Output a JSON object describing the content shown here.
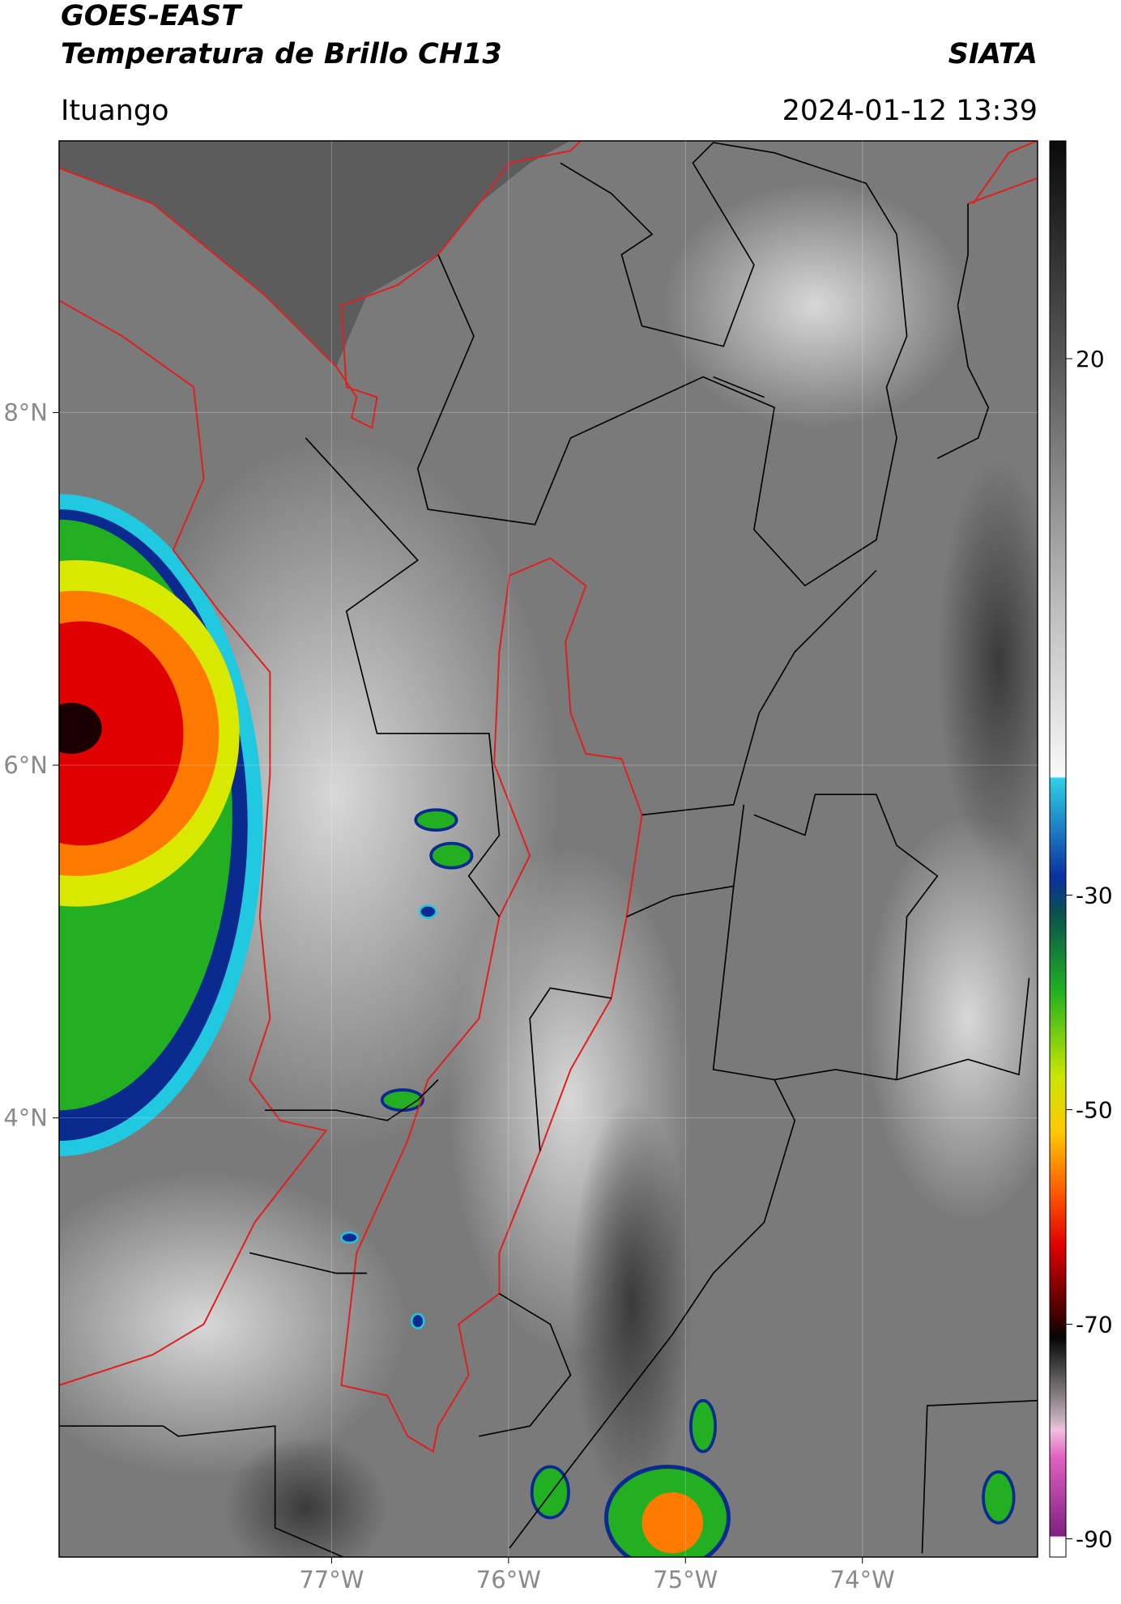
{
  "header": {
    "title_line1": "GOES-EAST",
    "title_line2": "Temperatura de Brillo CH13",
    "organization": "SIATA",
    "location": "Ituango",
    "timestamp": "2024-01-12 13:39"
  },
  "map": {
    "xlim": [
      -78.54,
      -73.01
    ],
    "ylim": [
      1.51,
      9.54
    ],
    "xticks": [
      {
        "value": -77,
        "label": "77°W"
      },
      {
        "value": -76,
        "label": "76°W"
      },
      {
        "value": -75,
        "label": "75°W"
      },
      {
        "value": -74,
        "label": "74°W"
      }
    ],
    "yticks": [
      {
        "value": 8,
        "label": "8°N"
      },
      {
        "value": 6,
        "label": "6°N"
      },
      {
        "value": 4,
        "label": "4°N"
      }
    ],
    "grid": true
  },
  "colorbar": {
    "lim": [
      -91.7,
      40.3
    ],
    "ticks": [
      20,
      -30,
      -50,
      -70,
      -90
    ]
  }
}
